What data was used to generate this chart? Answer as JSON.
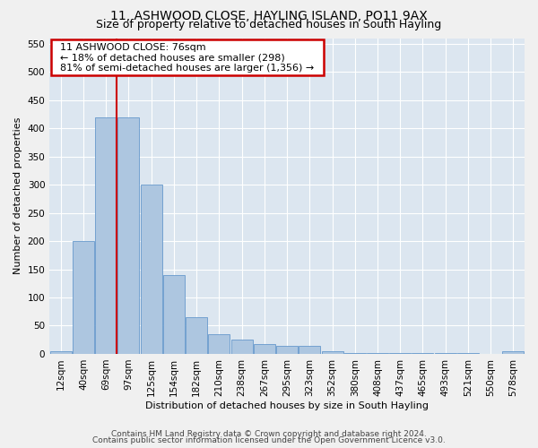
{
  "title": "11, ASHWOOD CLOSE, HAYLING ISLAND, PO11 9AX",
  "subtitle": "Size of property relative to detached houses in South Hayling",
  "xlabel": "Distribution of detached houses by size in South Hayling",
  "ylabel": "Number of detached properties",
  "footer_line1": "Contains HM Land Registry data © Crown copyright and database right 2024.",
  "footer_line2": "Contains public sector information licensed under the Open Government Licence v3.0.",
  "annotation_title": "11 ASHWOOD CLOSE: 76sqm",
  "annotation_line1": "← 18% of detached houses are smaller (298)",
  "annotation_line2": "81% of semi-detached houses are larger (1,356) →",
  "bar_categories": [
    "12sqm",
    "40sqm",
    "69sqm",
    "97sqm",
    "125sqm",
    "154sqm",
    "182sqm",
    "210sqm",
    "238sqm",
    "267sqm",
    "295sqm",
    "323sqm",
    "352sqm",
    "380sqm",
    "408sqm",
    "437sqm",
    "465sqm",
    "493sqm",
    "521sqm",
    "550sqm",
    "578sqm"
  ],
  "bar_values": [
    5,
    200,
    420,
    420,
    300,
    140,
    65,
    35,
    25,
    18,
    14,
    14,
    5,
    2,
    2,
    2,
    2,
    2,
    2,
    0,
    5
  ],
  "bar_color": "#adc6e0",
  "bar_edge_color": "#6699cc",
  "vline_color": "#cc0000",
  "vline_position": 2.45,
  "annotation_box_color": "#cc0000",
  "ylim": [
    0,
    560
  ],
  "yticks": [
    0,
    50,
    100,
    150,
    200,
    250,
    300,
    350,
    400,
    450,
    500,
    550
  ],
  "plot_bg_color": "#dce6f0",
  "fig_bg_color": "#f0f0f0",
  "title_fontsize": 10,
  "subtitle_fontsize": 9,
  "xlabel_fontsize": 8,
  "ylabel_fontsize": 8,
  "tick_fontsize": 7.5,
  "footer_fontsize": 6.5,
  "annot_fontsize": 8
}
